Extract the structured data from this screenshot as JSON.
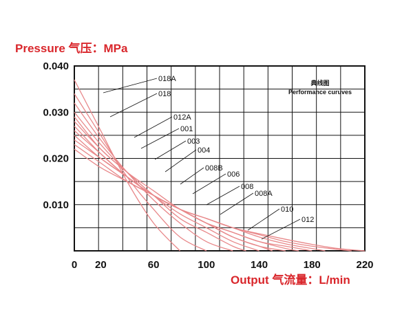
{
  "chart_data": {
    "type": "line",
    "title": "",
    "ylabel": "Pressure 气压：MPa",
    "xlabel": "Output 气流量：L/min",
    "legend_title_cn": "典线图",
    "legend_title_en": "Performance curuves",
    "xlim": [
      0,
      220
    ],
    "ylim": [
      0,
      0.04
    ],
    "x_ticks": [
      "0",
      "20",
      "60",
      "100",
      "140",
      "180",
      "220"
    ],
    "y_ticks": [
      "0.040",
      "0.030",
      "0.020",
      "0.010"
    ],
    "grid": true,
    "series": [
      {
        "name": "018A",
        "x": [
          0,
          20,
          40,
          60,
          80
        ],
        "y": [
          0.037,
          0.026,
          0.015,
          0.006,
          0.0
        ]
      },
      {
        "name": "018",
        "x": [
          0,
          20,
          40,
          60,
          80,
          100
        ],
        "y": [
          0.034,
          0.025,
          0.016,
          0.009,
          0.003,
          0.0
        ]
      },
      {
        "name": "012A",
        "x": [
          0,
          20,
          40,
          60,
          80,
          100,
          120
        ],
        "y": [
          0.032,
          0.024,
          0.017,
          0.011,
          0.006,
          0.002,
          0.0
        ]
      },
      {
        "name": "001",
        "x": [
          0,
          20,
          40,
          60,
          80,
          100,
          120,
          130
        ],
        "y": [
          0.03,
          0.023,
          0.017,
          0.012,
          0.007,
          0.004,
          0.001,
          0.0
        ]
      },
      {
        "name": "003",
        "x": [
          0,
          20,
          40,
          60,
          80,
          100,
          120,
          140
        ],
        "y": [
          0.029,
          0.022,
          0.017,
          0.012,
          0.008,
          0.005,
          0.002,
          0.0
        ]
      },
      {
        "name": "004",
        "x": [
          0,
          20,
          40,
          60,
          80,
          100,
          120,
          140,
          150
        ],
        "y": [
          0.028,
          0.022,
          0.017,
          0.013,
          0.009,
          0.006,
          0.003,
          0.001,
          0.0
        ]
      },
      {
        "name": "008B",
        "x": [
          0,
          20,
          40,
          60,
          80,
          100,
          120,
          140,
          160
        ],
        "y": [
          0.027,
          0.021,
          0.016,
          0.012,
          0.009,
          0.006,
          0.003,
          0.001,
          0.0
        ]
      },
      {
        "name": "006",
        "x": [
          0,
          20,
          40,
          60,
          80,
          100,
          120,
          140,
          160,
          170
        ],
        "y": [
          0.026,
          0.021,
          0.016,
          0.012,
          0.009,
          0.006,
          0.004,
          0.002,
          0.0005,
          0.0
        ]
      },
      {
        "name": "008",
        "x": [
          0,
          20,
          40,
          60,
          80,
          100,
          120,
          140,
          160,
          180
        ],
        "y": [
          0.025,
          0.02,
          0.016,
          0.012,
          0.009,
          0.006,
          0.004,
          0.002,
          0.001,
          0.0
        ]
      },
      {
        "name": "008A",
        "x": [
          0,
          20,
          40,
          60,
          80,
          100,
          120,
          140,
          160,
          180,
          190
        ],
        "y": [
          0.024,
          0.02,
          0.016,
          0.012,
          0.009,
          0.007,
          0.005,
          0.003,
          0.0015,
          0.0005,
          0.0
        ]
      },
      {
        "name": "010",
        "x": [
          0,
          20,
          40,
          60,
          80,
          100,
          120,
          140,
          160,
          180,
          200,
          210
        ],
        "y": [
          0.023,
          0.019,
          0.015,
          0.012,
          0.009,
          0.007,
          0.005,
          0.0035,
          0.002,
          0.001,
          0.0003,
          0.0
        ]
      },
      {
        "name": "012",
        "x": [
          0,
          20,
          40,
          60,
          80,
          100,
          120,
          140,
          160,
          180,
          200,
          220
        ],
        "y": [
          0.022,
          0.018,
          0.015,
          0.012,
          0.009,
          0.007,
          0.005,
          0.0037,
          0.0025,
          0.0014,
          0.0005,
          0.0
        ]
      }
    ],
    "colors": {
      "curve": "#e8888a",
      "grid": "#111111",
      "axis_title": "#d9262b"
    }
  }
}
